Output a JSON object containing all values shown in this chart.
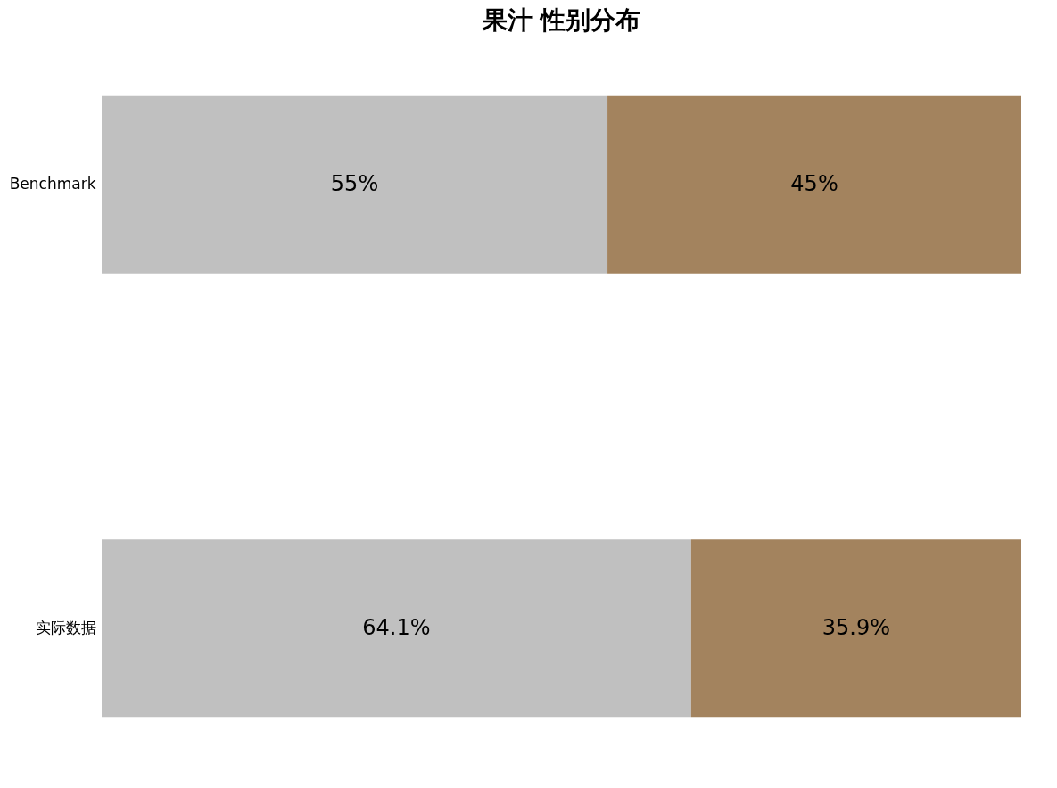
{
  "chart_data": {
    "type": "bar",
    "title": "果汁 性别分布",
    "orientation": "horizontal",
    "stacked": true,
    "categories": [
      "Benchmark",
      "实际数据"
    ],
    "series": [
      {
        "color": "#c0c0c0",
        "values": [
          55,
          64.1
        ],
        "value_labels": [
          "55%",
          "64.1%"
        ]
      },
      {
        "color": "#a3835e",
        "values": [
          45,
          35.9
        ],
        "value_labels": [
          "45%",
          "35.9%"
        ]
      }
    ],
    "xlim": [
      0,
      100
    ],
    "tick_labels": "y",
    "legend": false
  }
}
